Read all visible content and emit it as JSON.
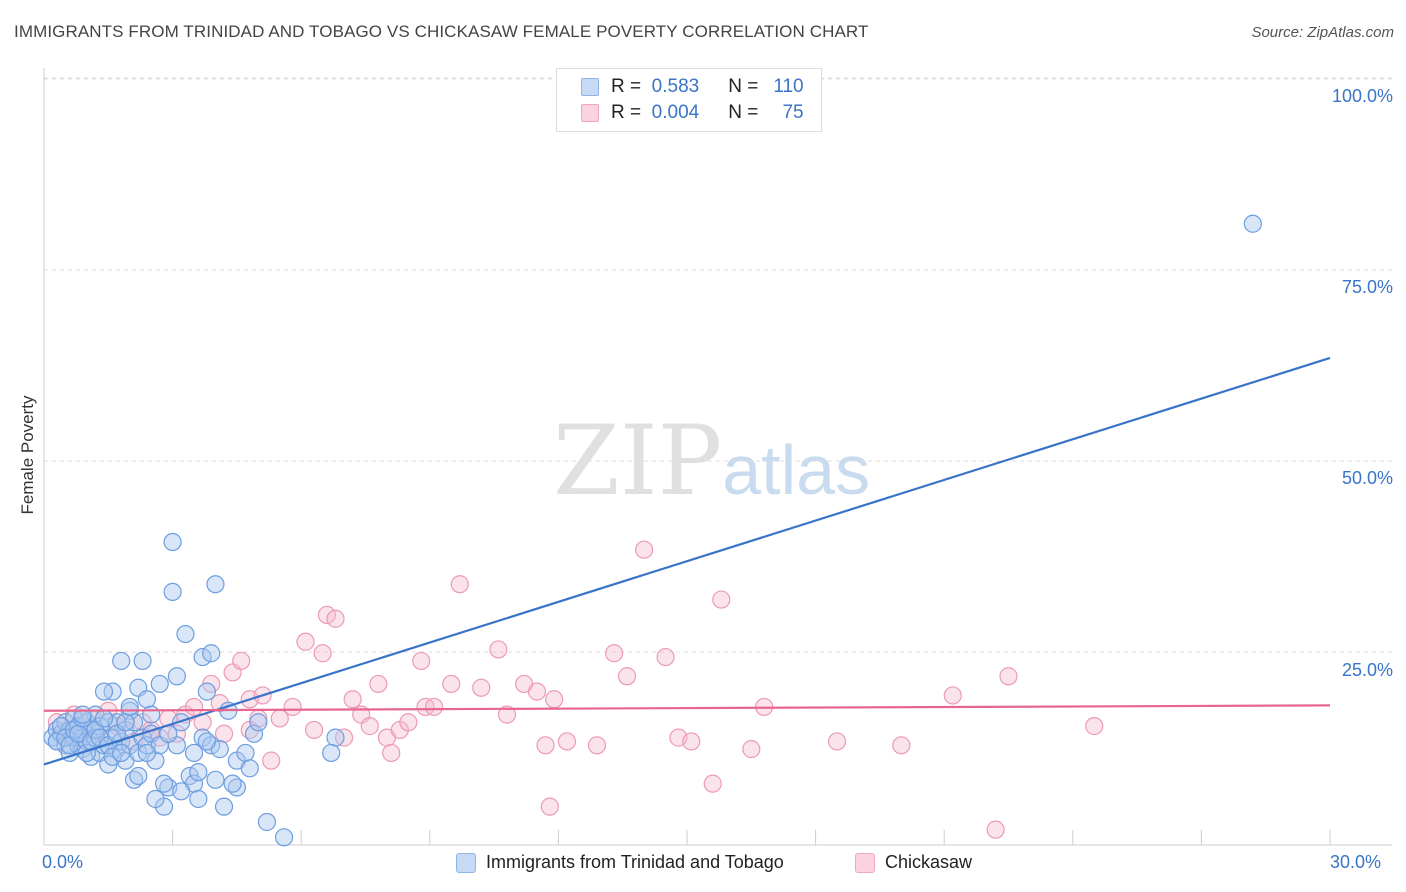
{
  "header": {
    "title": "IMMIGRANTS FROM TRINIDAD AND TOBAGO VS CHICKASAW FEMALE POVERTY CORRELATION CHART",
    "source": "Source: ZipAtlas.com"
  },
  "watermark": {
    "zip": "ZIP",
    "atlas": "atlas"
  },
  "legend": {
    "rows": [
      {
        "r_label": "R =",
        "r_value": "0.583",
        "n_label": "N =",
        "n_value": "110",
        "color": "#aac8f0"
      },
      {
        "r_label": "R =",
        "r_value": "0.004",
        "n_label": "N =",
        "n_value": "75",
        "color": "#f5b8cc"
      }
    ]
  },
  "bottom_legend": [
    {
      "label": "Immigrants from Trinidad and Tobago",
      "color": "#aac8f0"
    },
    {
      "label": "Chickasaw",
      "color": "#f5b8cc"
    }
  ],
  "chart_data": {
    "type": "scatter",
    "ylabel": "Female Poverty",
    "xlim": [
      0,
      30
    ],
    "ylim": [
      0,
      100
    ],
    "x_tick_labels": [
      "0.0%",
      "30.0%"
    ],
    "y_tick_labels": [
      "100.0%",
      "75.0%",
      "50.0%",
      "25.0%"
    ],
    "y_ticks": [
      100,
      75,
      50,
      25
    ],
    "grid": "horizontal dashed",
    "colors": {
      "blue": "#3a74c8",
      "blue_fill": "#aac8f0",
      "pink": "#e8668e",
      "pink_fill": "#f5b8cc"
    },
    "series": [
      {
        "name": "Immigrants from Trinidad and Tobago",
        "color": "#3a74c8",
        "trend": {
          "x0": 0,
          "y0": 10.5,
          "x1": 30,
          "y1": 63.5
        },
        "points": [
          [
            0.2,
            14
          ],
          [
            0.3,
            15
          ],
          [
            0.3,
            13.5
          ],
          [
            0.4,
            14.5
          ],
          [
            0.5,
            16
          ],
          [
            0.5,
            13
          ],
          [
            0.6,
            15
          ],
          [
            0.6,
            12
          ],
          [
            0.7,
            14
          ],
          [
            0.7,
            16.5
          ],
          [
            0.8,
            13
          ],
          [
            0.8,
            15.5
          ],
          [
            0.9,
            14
          ],
          [
            0.9,
            12.5
          ],
          [
            1.0,
            16
          ],
          [
            1.0,
            13.5
          ],
          [
            1.1,
            15
          ],
          [
            1.1,
            11.5
          ],
          [
            1.2,
            14
          ],
          [
            1.2,
            17
          ],
          [
            1.3,
            12
          ],
          [
            1.3,
            15.5
          ],
          [
            1.4,
            13
          ],
          [
            1.5,
            16
          ],
          [
            1.5,
            10.5
          ],
          [
            1.6,
            14
          ],
          [
            1.6,
            20
          ],
          [
            1.7,
            12.5
          ],
          [
            1.7,
            16
          ],
          [
            1.8,
            13.5
          ],
          [
            1.8,
            24
          ],
          [
            1.9,
            15
          ],
          [
            1.9,
            11
          ],
          [
            2.0,
            17.5
          ],
          [
            2.0,
            13
          ],
          [
            2.1,
            8.5
          ],
          [
            2.1,
            16
          ],
          [
            2.2,
            20.5
          ],
          [
            2.2,
            12
          ],
          [
            2.3,
            14
          ],
          [
            2.3,
            24
          ],
          [
            2.4,
            19
          ],
          [
            2.4,
            13
          ],
          [
            2.5,
            17
          ],
          [
            2.5,
            14.5
          ],
          [
            2.6,
            11
          ],
          [
            2.7,
            13
          ],
          [
            2.7,
            21
          ],
          [
            2.8,
            5
          ],
          [
            2.9,
            7.5
          ],
          [
            3.0,
            39.5
          ],
          [
            3.0,
            33
          ],
          [
            3.1,
            22
          ],
          [
            3.1,
            13
          ],
          [
            3.2,
            16
          ],
          [
            3.3,
            27.5
          ],
          [
            3.4,
            9
          ],
          [
            3.5,
            12
          ],
          [
            3.5,
            8
          ],
          [
            3.6,
            6
          ],
          [
            3.7,
            24.5
          ],
          [
            3.7,
            14
          ],
          [
            3.8,
            20
          ],
          [
            3.9,
            13
          ],
          [
            3.9,
            25
          ],
          [
            4.0,
            34
          ],
          [
            4.0,
            8.5
          ],
          [
            4.1,
            12.5
          ],
          [
            4.2,
            5
          ],
          [
            4.3,
            17.5
          ],
          [
            4.5,
            7.5
          ],
          [
            4.5,
            11
          ],
          [
            4.7,
            12
          ],
          [
            4.8,
            10
          ],
          [
            4.9,
            14.5
          ],
          [
            5.0,
            16
          ],
          [
            5.2,
            3
          ],
          [
            5.6,
            1
          ],
          [
            6.8,
            14
          ],
          [
            6.7,
            12
          ],
          [
            0.3,
            13.5
          ],
          [
            0.4,
            15.5
          ],
          [
            0.5,
            14
          ],
          [
            0.6,
            13
          ],
          [
            0.7,
            15
          ],
          [
            0.8,
            14.5
          ],
          [
            0.9,
            16.5
          ],
          [
            1.0,
            12
          ],
          [
            1.1,
            13.5
          ],
          [
            1.2,
            15
          ],
          [
            1.3,
            14
          ],
          [
            1.4,
            16.5
          ],
          [
            1.5,
            13
          ],
          [
            1.6,
            11.5
          ],
          [
            1.7,
            14.5
          ],
          [
            1.8,
            12
          ],
          [
            1.9,
            16
          ],
          [
            2.0,
            18
          ],
          [
            2.2,
            9
          ],
          [
            2.6,
            6
          ],
          [
            2.8,
            8
          ],
          [
            3.2,
            7
          ],
          [
            3.6,
            9.5
          ],
          [
            3.8,
            13.5
          ],
          [
            4.4,
            8
          ],
          [
            2.4,
            12
          ],
          [
            1.4,
            20
          ],
          [
            0.9,
            17
          ],
          [
            2.9,
            14.5
          ],
          [
            28.2,
            81
          ]
        ]
      },
      {
        "name": "Chickasaw",
        "color": "#e8668e",
        "trend": {
          "x0": 0,
          "y0": 17.5,
          "x1": 30,
          "y1": 18.2
        },
        "points": [
          [
            0.3,
            16
          ],
          [
            0.5,
            14.5
          ],
          [
            0.7,
            17
          ],
          [
            0.9,
            15
          ],
          [
            1.1,
            16.5
          ],
          [
            1.3,
            14
          ],
          [
            1.5,
            17.5
          ],
          [
            1.7,
            15.5
          ],
          [
            1.9,
            16
          ],
          [
            2.1,
            13.5
          ],
          [
            2.3,
            16
          ],
          [
            2.5,
            15
          ],
          [
            2.7,
            14
          ],
          [
            2.9,
            16.5
          ],
          [
            3.1,
            14.5
          ],
          [
            3.3,
            17
          ],
          [
            3.5,
            18
          ],
          [
            3.7,
            16
          ],
          [
            3.9,
            21
          ],
          [
            4.1,
            18.5
          ],
          [
            4.2,
            14.5
          ],
          [
            4.4,
            22.5
          ],
          [
            4.6,
            24
          ],
          [
            4.8,
            19
          ],
          [
            5.0,
            16.5
          ],
          [
            5.1,
            19.5
          ],
          [
            5.3,
            11
          ],
          [
            5.5,
            16.5
          ],
          [
            5.8,
            18
          ],
          [
            6.1,
            26.5
          ],
          [
            6.3,
            15
          ],
          [
            6.5,
            25
          ],
          [
            6.6,
            30
          ],
          [
            6.8,
            29.5
          ],
          [
            7.0,
            14
          ],
          [
            7.2,
            19
          ],
          [
            7.4,
            17
          ],
          [
            7.6,
            15.5
          ],
          [
            7.8,
            21
          ],
          [
            8.0,
            14
          ],
          [
            8.1,
            12
          ],
          [
            8.3,
            15
          ],
          [
            8.5,
            16
          ],
          [
            8.8,
            24
          ],
          [
            8.9,
            18
          ],
          [
            9.1,
            18
          ],
          [
            9.5,
            21
          ],
          [
            9.7,
            34
          ],
          [
            10.2,
            20.5
          ],
          [
            10.6,
            25.5
          ],
          [
            10.8,
            17
          ],
          [
            11.2,
            21
          ],
          [
            11.5,
            20
          ],
          [
            11.7,
            13
          ],
          [
            11.8,
            5
          ],
          [
            11.9,
            19
          ],
          [
            12.2,
            13.5
          ],
          [
            12.9,
            13
          ],
          [
            13.3,
            25
          ],
          [
            13.6,
            22
          ],
          [
            14.5,
            24.5
          ],
          [
            14.8,
            14
          ],
          [
            15.1,
            13.5
          ],
          [
            15.6,
            8
          ],
          [
            15.8,
            32
          ],
          [
            16.5,
            12.5
          ],
          [
            16.8,
            18
          ],
          [
            18.5,
            13.5
          ],
          [
            20.0,
            13
          ],
          [
            21.2,
            19.5
          ],
          [
            22.2,
            2
          ],
          [
            22.5,
            22
          ],
          [
            24.5,
            15.5
          ],
          [
            14.0,
            38.5
          ],
          [
            4.8,
            15
          ]
        ]
      }
    ]
  }
}
